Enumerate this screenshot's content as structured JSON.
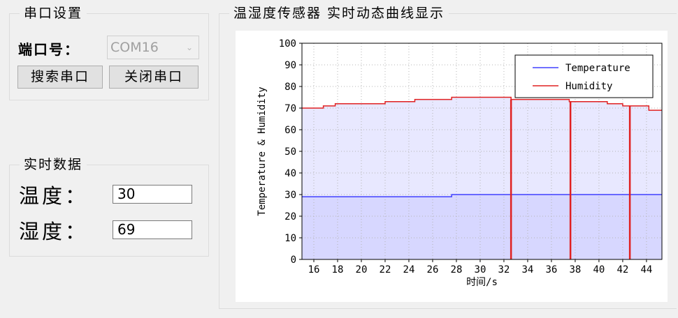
{
  "serial": {
    "group_title": "串口设置",
    "port_label": "端口号：",
    "port_value": "COM16",
    "search_button": "搜索串口",
    "close_button": "关闭串口"
  },
  "realtime": {
    "group_title": "实时数据",
    "temp_label": "温度：",
    "temp_value": "30",
    "humid_label": "湿度：",
    "humid_value": "69"
  },
  "chart_panel": {
    "group_title": "温湿度传感器 实时动态曲线显示"
  },
  "chart_data": {
    "type": "area",
    "title": "",
    "xlabel": "时间/s",
    "ylabel": "Temperature & Humidity",
    "xlim": [
      15,
      45.3
    ],
    "ylim": [
      0,
      100
    ],
    "x_ticks": [
      16,
      18,
      20,
      22,
      24,
      26,
      28,
      30,
      32,
      34,
      36,
      38,
      40,
      42,
      44
    ],
    "y_ticks": [
      0,
      10,
      20,
      30,
      40,
      50,
      60,
      70,
      80,
      90,
      100
    ],
    "grid": true,
    "legend_position": "top-right",
    "series": [
      {
        "name": "Temperature",
        "color": "#4040ff",
        "fill": "#d7d7ff",
        "x": [
          15,
          27.6,
          27.6,
          45.3
        ],
        "values": [
          29,
          29,
          30,
          30
        ]
      },
      {
        "name": "Humidity",
        "color": "#e02020",
        "fill": "#e8e8ff",
        "x": [
          15,
          16.8,
          16.8,
          17.8,
          17.8,
          22,
          22,
          24.5,
          24.5,
          27.6,
          27.6,
          32.6,
          32.6,
          37.5,
          37.5,
          40.7,
          40.7,
          42,
          42,
          44.2,
          44.2,
          45.3
        ],
        "values": [
          70,
          70,
          71,
          71,
          72,
          72,
          73,
          73,
          74,
          74,
          75,
          75,
          74,
          74,
          73,
          73,
          72,
          72,
          71,
          71,
          69,
          69
        ]
      }
    ],
    "markers": [
      {
        "x": 32.6,
        "value": 74
      },
      {
        "x": 37.6,
        "value": 73
      },
      {
        "x": 42.6,
        "value": 71
      }
    ]
  }
}
